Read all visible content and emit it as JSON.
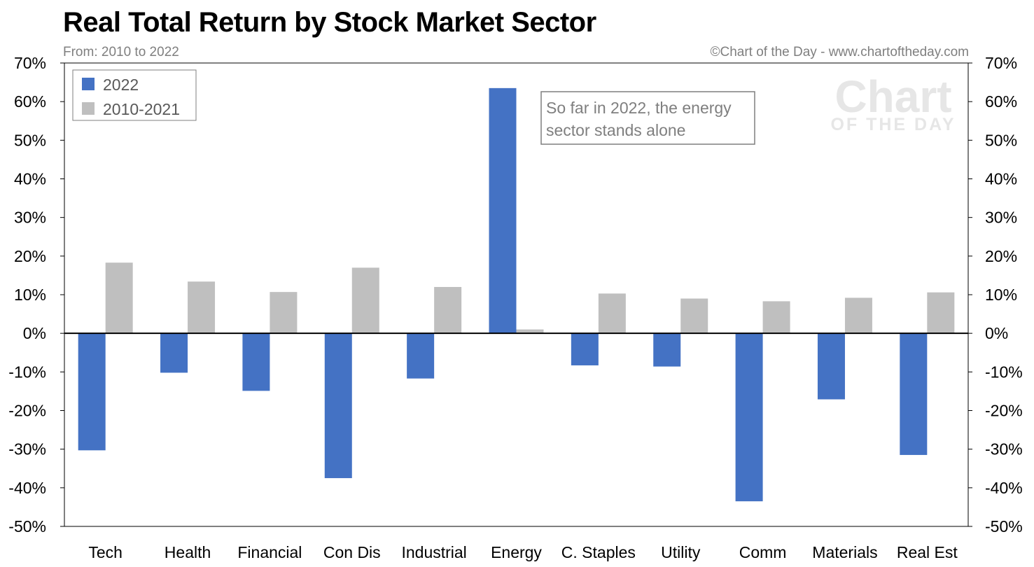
{
  "header": {
    "title": "Real Total Return by Stock Market Sector",
    "subtitle": "From: 2010 to 2022",
    "credit": "©Chart of the Day - www.chartoftheday.com"
  },
  "watermark": {
    "line1": "Chart",
    "line2": "OF THE DAY"
  },
  "annotation": {
    "line1": "So far in 2022, the energy",
    "line2": "sector stands alone"
  },
  "colors": {
    "series_2022": "#4472c4",
    "series_2010_2021": "#bfbfbf"
  },
  "chart_data": {
    "type": "bar",
    "title": "Real Total Return by Stock Market Sector",
    "categories": [
      "Tech",
      "Health",
      "Financial",
      "Con Dis",
      "Industrial",
      "Energy",
      "C. Staples",
      "Utility",
      "Comm",
      "Materials",
      "Real Est"
    ],
    "series": [
      {
        "name": "2022",
        "color": "#4472c4",
        "values": [
          -30.3,
          -10.2,
          -14.9,
          -37.5,
          -11.7,
          63.5,
          -8.3,
          -8.6,
          -43.5,
          -17.1,
          -31.5
        ]
      },
      {
        "name": "2010-2021",
        "color": "#bfbfbf",
        "values": [
          18.3,
          13.4,
          10.7,
          17.0,
          12.0,
          1.0,
          10.3,
          9.0,
          8.3,
          9.2,
          10.6
        ]
      }
    ],
    "ylim": [
      -50,
      70
    ],
    "yticks": [
      "-50%",
      "-40%",
      "-30%",
      "-20%",
      "-10%",
      "0%",
      "10%",
      "20%",
      "30%",
      "40%",
      "50%",
      "60%",
      "70%"
    ],
    "y_ticks_on_both_sides": true,
    "grid": false,
    "legend_position": "top-left"
  }
}
